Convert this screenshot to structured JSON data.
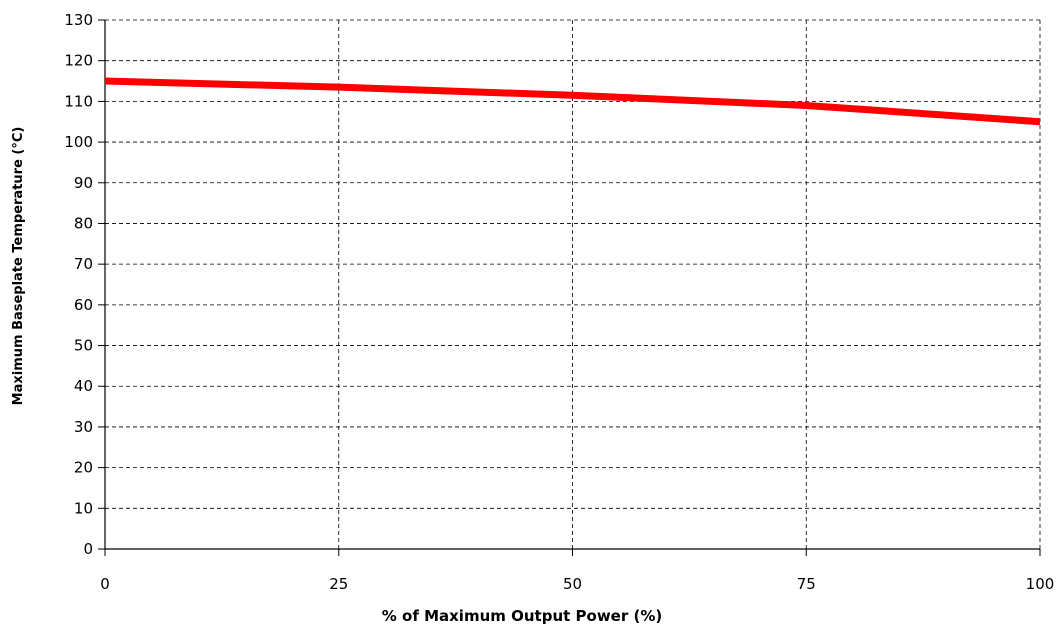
{
  "chart_data": {
    "type": "line",
    "title": "",
    "xlabel": "% of Maximum Output Power (%)",
    "ylabel": "Maximum Baseplate Temperature (°C)",
    "xlim": [
      0,
      100
    ],
    "ylim": [
      0,
      130
    ],
    "x_ticks": [
      0,
      25,
      50,
      75,
      100
    ],
    "y_ticks": [
      0,
      10,
      20,
      30,
      40,
      50,
      60,
      70,
      80,
      90,
      100,
      110,
      120,
      130
    ],
    "grid": true,
    "grid_style": "dashed",
    "series": [
      {
        "color": "#ff0000",
        "x": [
          0,
          25,
          50,
          75,
          100
        ],
        "y": [
          115,
          113.5,
          111.5,
          109,
          105
        ]
      }
    ]
  }
}
